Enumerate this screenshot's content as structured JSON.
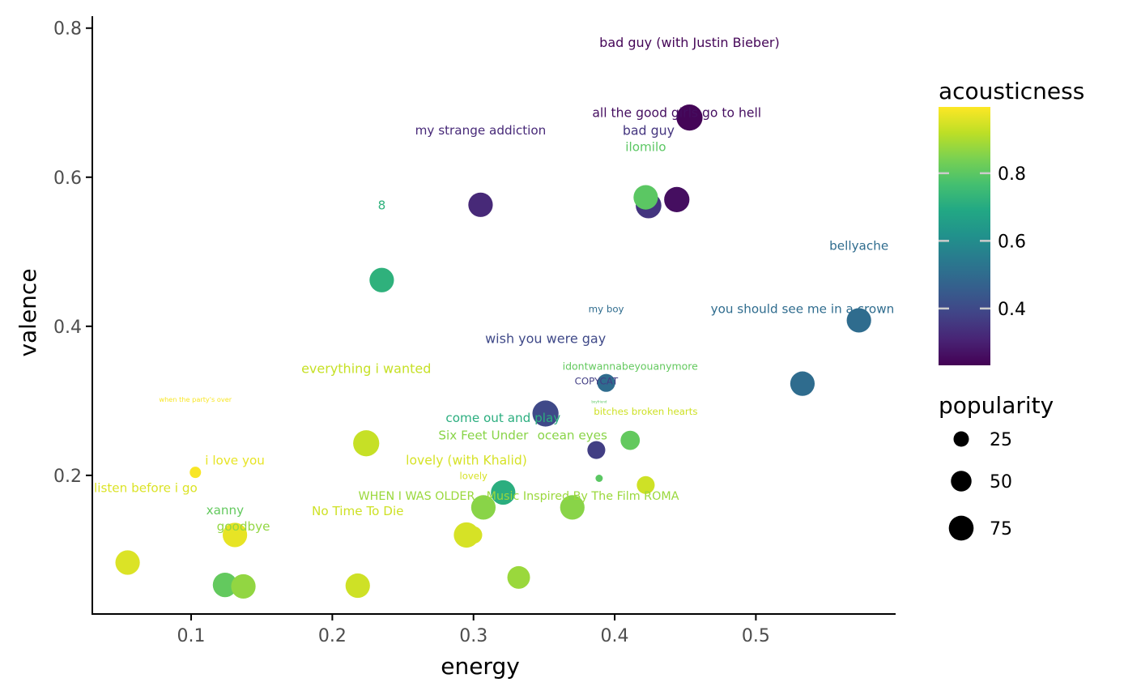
{
  "chart_data": {
    "type": "scatter",
    "title": "",
    "xlabel": "energy",
    "ylabel": "valence",
    "xlim": [
      0.03,
      0.599
    ],
    "ylim": [
      0.014,
      0.816
    ],
    "x_ticks": [
      0.1,
      0.2,
      0.3,
      0.4,
      0.5
    ],
    "x_tick_labels": [
      "0.1",
      "0.2",
      "0.3",
      "0.4",
      "0.5"
    ],
    "y_ticks": [
      0.2,
      0.4,
      0.6,
      0.8
    ],
    "y_tick_labels": [
      "0.2",
      "0.4",
      "0.6",
      "0.8"
    ],
    "grid": false,
    "color": {
      "variable": "acousticness",
      "colormap": "viridis",
      "range": [
        0.232,
        0.996
      ],
      "ticks": [
        0.4,
        0.6,
        0.8
      ],
      "tick_labels": [
        "0.4",
        "0.6",
        "0.8"
      ]
    },
    "size": {
      "variable": "popularity",
      "breaks": [
        25,
        50,
        75
      ],
      "break_labels": [
        "25",
        "50",
        "75"
      ]
    },
    "legend_placement": "right",
    "points": [
      {
        "name": "bad guy (with Justin Bieber)",
        "energy": 0.453,
        "valence": 0.68,
        "acousticness": 0.24,
        "popularity": 75
      },
      {
        "name": "my strange addiction",
        "energy": 0.305,
        "valence": 0.563,
        "acousticness": 0.32,
        "popularity": 65
      },
      {
        "name": "bad guy",
        "energy": 0.424,
        "valence": 0.562,
        "acousticness": 0.35,
        "popularity": 72
      },
      {
        "name": "ilomilo",
        "energy": 0.422,
        "valence": 0.573,
        "acousticness": 0.8,
        "popularity": 65
      },
      {
        "name": "all the good girls go to hell",
        "energy": 0.444,
        "valence": 0.57,
        "acousticness": 0.26,
        "popularity": 70
      },
      {
        "name": "8",
        "energy": 0.235,
        "valence": 0.462,
        "acousticness": 0.72,
        "popularity": 65
      },
      {
        "name": "bellyache",
        "energy": 0.573,
        "valence": 0.408,
        "acousticness": 0.5,
        "popularity": 65
      },
      {
        "name": "you should see me in a crown",
        "energy": 0.533,
        "valence": 0.323,
        "acousticness": 0.5,
        "popularity": 65
      },
      {
        "name": "my boy",
        "energy": 0.394,
        "valence": 0.324,
        "acousticness": 0.5,
        "popularity": 32
      },
      {
        "name": "wish you were gay",
        "energy": 0.351,
        "valence": 0.283,
        "acousticness": 0.4,
        "popularity": 75
      },
      {
        "name": "COPYCAT",
        "energy": 0.387,
        "valence": 0.234,
        "acousticness": 0.37,
        "popularity": 32
      },
      {
        "name": "idontwannabeyouanymore",
        "energy": 0.411,
        "valence": 0.247,
        "acousticness": 0.81,
        "popularity": 38
      },
      {
        "name": "everything i wanted",
        "energy": 0.224,
        "valence": 0.243,
        "acousticness": 0.93,
        "popularity": 75
      },
      {
        "name": "when the party's over",
        "energy": 0.103,
        "valence": 0.204,
        "acousticness": 0.99,
        "popularity": 9
      },
      {
        "name": "boyfriend",
        "energy": 0.389,
        "valence": 0.196,
        "acousticness": 0.8,
        "popularity": 0
      },
      {
        "name": "bitches broken hearts",
        "energy": 0.422,
        "valence": 0.187,
        "acousticness": 0.94,
        "popularity": 32
      },
      {
        "name": "come out and play",
        "energy": 0.321,
        "valence": 0.177,
        "acousticness": 0.71,
        "popularity": 65
      },
      {
        "name": "Six Feet Under",
        "energy": 0.307,
        "valence": 0.157,
        "acousticness": 0.86,
        "popularity": 65
      },
      {
        "name": "ocean eyes",
        "energy": 0.37,
        "valence": 0.157,
        "acousticness": 0.86,
        "popularity": 65
      },
      {
        "name": "i love you",
        "energy": 0.131,
        "valence": 0.12,
        "acousticness": 0.97,
        "popularity": 65
      },
      {
        "name": "lovely",
        "energy": 0.3,
        "valence": 0.12,
        "acousticness": 0.95,
        "popularity": 30
      },
      {
        "name": "lovely (with Khalid)",
        "energy": 0.295,
        "valence": 0.12,
        "acousticness": 0.95,
        "popularity": 70
      },
      {
        "name": "listen before i go",
        "energy": 0.055,
        "valence": 0.083,
        "acousticness": 0.955,
        "popularity": 65
      },
      {
        "name": "WHEN I WAS OLDER - Music Inspired By The Film ROMA",
        "energy": 0.332,
        "valence": 0.063,
        "acousticness": 0.88,
        "popularity": 55
      },
      {
        "name": "xanny",
        "energy": 0.124,
        "valence": 0.053,
        "acousticness": 0.81,
        "popularity": 65
      },
      {
        "name": "goodbye",
        "energy": 0.137,
        "valence": 0.051,
        "acousticness": 0.87,
        "popularity": 65
      },
      {
        "name": "No Time To Die",
        "energy": 0.218,
        "valence": 0.052,
        "acousticness": 0.94,
        "popularity": 65
      }
    ]
  }
}
